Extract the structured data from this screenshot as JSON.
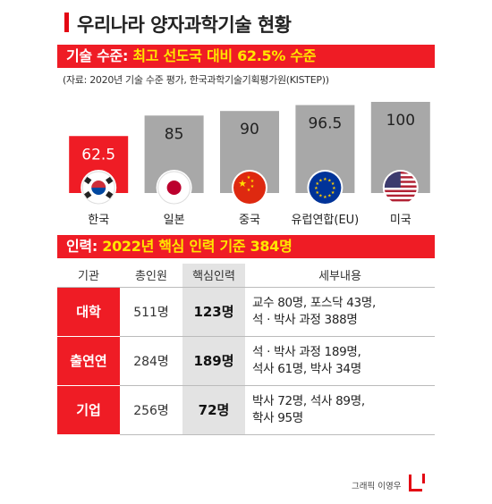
{
  "title": "우리나라 양자과학기술 현황",
  "section1": {
    "label": "기술 수준:",
    "highlight": "최고 선도국 대비 62.5% 수준"
  },
  "source": "(자료: 2020년 기술 수준 평가, 한국과학기술기획평가원(KISTEP))",
  "chart_data": {
    "type": "bar",
    "categories": [
      "한국",
      "일본",
      "중국",
      "유럽연합(EU)",
      "미국"
    ],
    "values": [
      62.5,
      85,
      90,
      96.5,
      100
    ],
    "value_labels": [
      "62.5",
      "85",
      "90",
      "96.5",
      "100"
    ],
    "ylim": [
      0,
      100
    ],
    "colors": {
      "highlight": "#ef1c25",
      "default": "#a8a8a8"
    },
    "flag_icons": [
      "korea-flag-icon",
      "japan-flag-icon",
      "china-flag-icon",
      "eu-flag-icon",
      "usa-flag-icon"
    ],
    "title": "",
    "xlabel": "",
    "ylabel": ""
  },
  "section2": {
    "label": "인력:",
    "highlight": "2022년 핵심 인력 기준 384명"
  },
  "table": {
    "headers": [
      "기관",
      "총인원",
      "핵심인력",
      "세부내용"
    ],
    "rows": [
      {
        "inst": "대학",
        "total": "511명",
        "core": "123명",
        "detail1": "교수 80명, 포스닥 43명,",
        "detail2": "석 · 박사 과정 388명"
      },
      {
        "inst": "출연연",
        "total": "284명",
        "core": "189명",
        "detail1": "석 · 박사 과정 189명,",
        "detail2": "석사 61명, 박사 34명"
      },
      {
        "inst": "기업",
        "total": "256명",
        "core": "72명",
        "detail1": "박사 72명, 석사 89명,",
        "detail2": "학사 95명"
      }
    ]
  },
  "credit": "그래픽 이영우",
  "accent": "#ef1c25"
}
